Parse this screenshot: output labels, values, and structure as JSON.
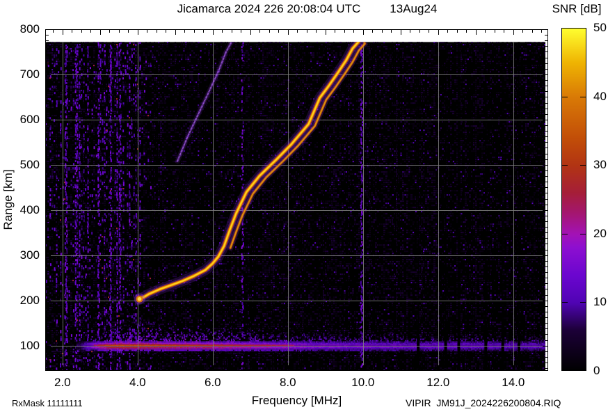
{
  "header": {
    "title": "Jicamarca 2024 226 20:08:04 UTC",
    "date": "13Aug24"
  },
  "colorbar": {
    "label": "SNR [dB]",
    "tick_values": [
      50,
      40,
      30,
      20,
      10,
      0
    ],
    "tick_labels": [
      "50",
      "40",
      "30",
      "20",
      "10",
      "0"
    ],
    "min": 0,
    "max": 50,
    "stops": [
      [
        0,
        "#000000"
      ],
      [
        6,
        "#1c0038"
      ],
      [
        10,
        "#5004b4"
      ],
      [
        14,
        "#6b06cf"
      ],
      [
        18,
        "#8d0fd0"
      ],
      [
        20,
        "#a312b5"
      ],
      [
        23,
        "#a41670"
      ],
      [
        26,
        "#a51e38"
      ],
      [
        30,
        "#b23413"
      ],
      [
        34,
        "#c24e08"
      ],
      [
        40,
        "#d97a06"
      ],
      [
        45,
        "#efb402"
      ],
      [
        50,
        "#ffff30"
      ]
    ]
  },
  "axes": {
    "x": {
      "label": "Frequency [MHz]",
      "tick_values": [
        2,
        4,
        6,
        8,
        10,
        12,
        14
      ],
      "tick_labels": [
        "2.0",
        "4.0",
        "6.0",
        "8.0",
        "10.0",
        "12.0",
        "14.0"
      ],
      "minor_step": 0.25
    },
    "y": {
      "label": "Range [km]",
      "tick_values": [
        800,
        700,
        600,
        500,
        400,
        300,
        200,
        100
      ],
      "tick_labels": [
        "800",
        "700",
        "600",
        "500",
        "400",
        "300",
        "200",
        "100"
      ],
      "minor_step": 12.5
    }
  },
  "footer": {
    "rx_mask": "RxMask 11111111",
    "file": "VIPIR  JM91J_2024226200804.RIQ"
  },
  "chart_data": {
    "type": "heatmap",
    "title": "Jicamarca 2024 226 20:08:04 UTC  13Aug24",
    "xlabel": "Frequency [MHz]",
    "ylabel": "Range [km]",
    "zlabel": "SNR [dB]",
    "xlim": [
      1.54,
      14.93
    ],
    "ylim": [
      44,
      800
    ],
    "zlim": [
      0,
      50
    ],
    "grid": true,
    "data_top_km": 772,
    "f_trace_o_mode": [
      [
        4.05,
        203
      ],
      [
        4.18,
        208
      ],
      [
        4.3,
        214
      ],
      [
        4.6,
        225
      ],
      [
        4.9,
        234
      ],
      [
        5.2,
        243
      ],
      [
        5.5,
        254
      ],
      [
        5.8,
        267
      ],
      [
        6.0,
        282
      ],
      [
        6.15,
        297
      ],
      [
        6.3,
        320
      ],
      [
        6.45,
        355
      ],
      [
        6.62,
        392
      ],
      [
        6.9,
        440
      ],
      [
        7.25,
        476
      ],
      [
        7.7,
        512
      ],
      [
        8.1,
        546
      ],
      [
        8.55,
        590
      ],
      [
        8.85,
        648
      ],
      [
        9.1,
        676
      ],
      [
        9.35,
        706
      ],
      [
        9.55,
        731
      ],
      [
        9.72,
        757
      ],
      [
        9.88,
        772
      ]
    ],
    "x_mode_offset_mhz": 0.17,
    "x_mode_min_mhz": 6.28,
    "x_mode_top": [
      10.04,
      770
    ],
    "oblique_trace": [
      [
        5.06,
        508
      ],
      [
        5.33,
        562
      ],
      [
        5.61,
        611
      ],
      [
        5.89,
        660
      ],
      [
        6.17,
        711
      ],
      [
        6.35,
        749
      ],
      [
        6.5,
        772
      ]
    ],
    "e_region": {
      "center_km": 100,
      "onset_mhz": 2.35,
      "core_snr": [
        [
          2.35,
          4
        ],
        [
          2.7,
          16
        ],
        [
          3.1,
          26
        ],
        [
          3.6,
          28
        ],
        [
          4.5,
          27
        ],
        [
          5.5,
          25
        ],
        [
          6.5,
          23
        ],
        [
          7.5,
          21
        ],
        [
          8.5,
          18
        ],
        [
          9.5,
          16
        ],
        [
          11,
          14.5
        ],
        [
          13,
          13.5
        ],
        [
          14.93,
          12.5
        ]
      ],
      "halo_km": [
        [
          2.4,
          8
        ],
        [
          3,
          40
        ],
        [
          3.6,
          62
        ],
        [
          4.3,
          70
        ],
        [
          5,
          63
        ],
        [
          6,
          54
        ],
        [
          7,
          48
        ],
        [
          8,
          45
        ],
        [
          9,
          42
        ],
        [
          10,
          40
        ],
        [
          12,
          36
        ],
        [
          14.93,
          32
        ]
      ]
    },
    "rfi_streaks": [
      [
        2.08,
        0.5
      ],
      [
        2.35,
        0.45
      ],
      [
        2.95,
        0.5
      ],
      [
        3.27,
        0.55
      ],
      [
        3.52,
        0.5
      ],
      [
        6.78,
        0.35
      ],
      [
        9.95,
        0.65
      ]
    ],
    "gap_freqs": [
      11.47,
      12.2,
      12.55,
      13.27,
      13.72,
      14.15
    ],
    "noise": {
      "seed": 1337,
      "dense_left_below_mhz": 4.35
    }
  }
}
